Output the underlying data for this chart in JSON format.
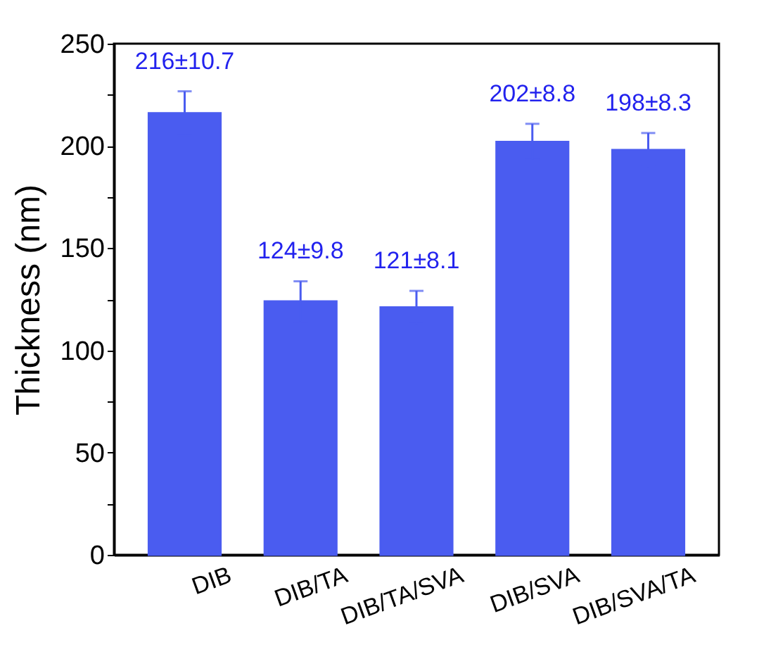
{
  "chart_data": {
    "type": "bar",
    "ylabel": "Thickness (nm)",
    "categories": [
      "DIB",
      "DIB/TA",
      "DIB/TA/SVA",
      "DIB/SVA",
      "DIB/SVA/TA"
    ],
    "values": [
      216,
      124,
      121,
      202,
      198
    ],
    "errors": [
      10.7,
      9.8,
      8.1,
      8.8,
      8.3
    ],
    "value_labels": [
      "216±10.7",
      "124±9.8",
      "121±8.1",
      "202±8.8",
      "198±8.3"
    ],
    "color": "#4a5cf0",
    "ylim": [
      0,
      250
    ],
    "yticks": [
      0,
      {
        "value": 25,
        "label": null
      },
      50,
      {
        "value": 75,
        "label": null
      },
      100,
      {
        "value": 125,
        "label": null
      },
      150,
      {
        "value": 175,
        "label": null
      },
      200,
      {
        "value": 225,
        "label": null
      },
      250
    ],
    "grid": false
  }
}
